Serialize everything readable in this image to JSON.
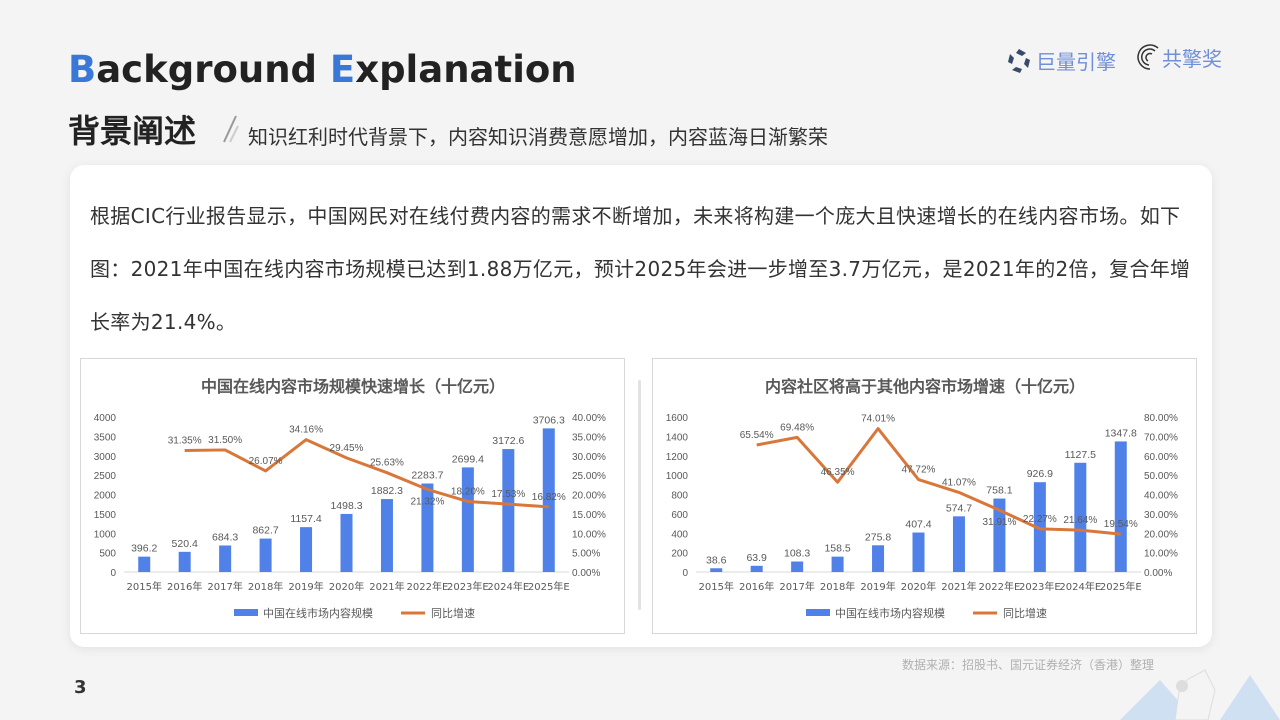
{
  "header": {
    "title_en_first_cap": "B",
    "title_en_first_rest": "ackground",
    "title_en_second_cap": "E",
    "title_en_second_rest": "xplanation",
    "title_cn": "背景阐述",
    "subtitle": "知识红利时代背景下，内容知识消费意愿增加，内容蓝海日渐繁荣"
  },
  "logos": {
    "logo1": "巨量引擎",
    "logo2": "共擎奖"
  },
  "paragraph": "根据CIC行业报告显示，中国网民对在线付费内容的需求不断增加，未来将构建一个庞大且快速增长的在线内容市场。如下图：2021年中国在线内容市场规模已达到1.88万亿元，预计2025年会进一步增至3.7万亿元，是2021年的2倍，复合年增长率为21.4%。",
  "footer": {
    "source": "数据来源：招股书、国元证券经济（香港）整理",
    "page": "3"
  },
  "colors": {
    "bar": "#4f81e8",
    "line": "#d9773a",
    "accent": "#3a78d8"
  },
  "chart_data": [
    {
      "type": "bar+line",
      "title": "中国在线内容市场规模快速增长（十亿元）",
      "categories": [
        "2015年",
        "2016年",
        "2017年",
        "2018年",
        "2019年",
        "2020年",
        "2021年",
        "2022年E",
        "2023年E",
        "2024年E",
        "2025年E"
      ],
      "series": [
        {
          "name": "中国在线市场内容规模",
          "type": "bar",
          "axis": "left",
          "values": [
            396.2,
            520.4,
            684.3,
            862.7,
            1157.4,
            1498.3,
            1882.3,
            2283.7,
            2699.4,
            3172.6,
            3706.3
          ]
        },
        {
          "name": "同比增速",
          "type": "line",
          "axis": "right",
          "values": [
            null,
            "31.35%",
            "31.50%",
            "26.07%",
            "34.16%",
            "29.45%",
            "25.63%",
            "21.32%",
            "18.20%",
            "17.53%",
            "16.82%"
          ]
        }
      ],
      "y_left": {
        "ticks": [
          "0",
          "500",
          "1000",
          "1500",
          "2000",
          "2500",
          "3000",
          "3500",
          "4000"
        ],
        "range": [
          0,
          4000
        ]
      },
      "y_right": {
        "ticks": [
          "0.00%",
          "5.00%",
          "10.00%",
          "15.00%",
          "20.00%",
          "25.00%",
          "30.00%",
          "35.00%",
          "40.00%"
        ],
        "range": [
          0,
          40
        ]
      },
      "legend": "bottom"
    },
    {
      "type": "bar+line",
      "title": "内容社区将高于其他内容市场增速（十亿元）",
      "categories": [
        "2015年",
        "2016年",
        "2017年",
        "2018年",
        "2019年",
        "2020年",
        "2021年",
        "2022年E",
        "2023年E",
        "2024年E",
        "2025年E"
      ],
      "series": [
        {
          "name": "中国在线市场内容规模",
          "type": "bar",
          "axis": "left",
          "values": [
            38.6,
            63.9,
            108.3,
            158.5,
            275.8,
            407.4,
            574.7,
            758.1,
            926.9,
            1127.5,
            1347.8
          ]
        },
        {
          "name": "同比增速",
          "type": "line",
          "axis": "right",
          "values": [
            null,
            "65.54%",
            "69.48%",
            "46.35%",
            "74.01%",
            "47.72%",
            "41.07%",
            "31.91%",
            "22.27%",
            "21.64%",
            "19.54%"
          ]
        }
      ],
      "y_left": {
        "ticks": [
          "0",
          "200",
          "400",
          "600",
          "800",
          "1000",
          "1200",
          "1400",
          "1600"
        ],
        "range": [
          0,
          1600
        ]
      },
      "y_right": {
        "ticks": [
          "0.00%",
          "10.00%",
          "20.00%",
          "30.00%",
          "40.00%",
          "50.00%",
          "60.00%",
          "70.00%",
          "80.00%"
        ],
        "range": [
          0,
          80
        ]
      },
      "legend": "bottom"
    }
  ]
}
